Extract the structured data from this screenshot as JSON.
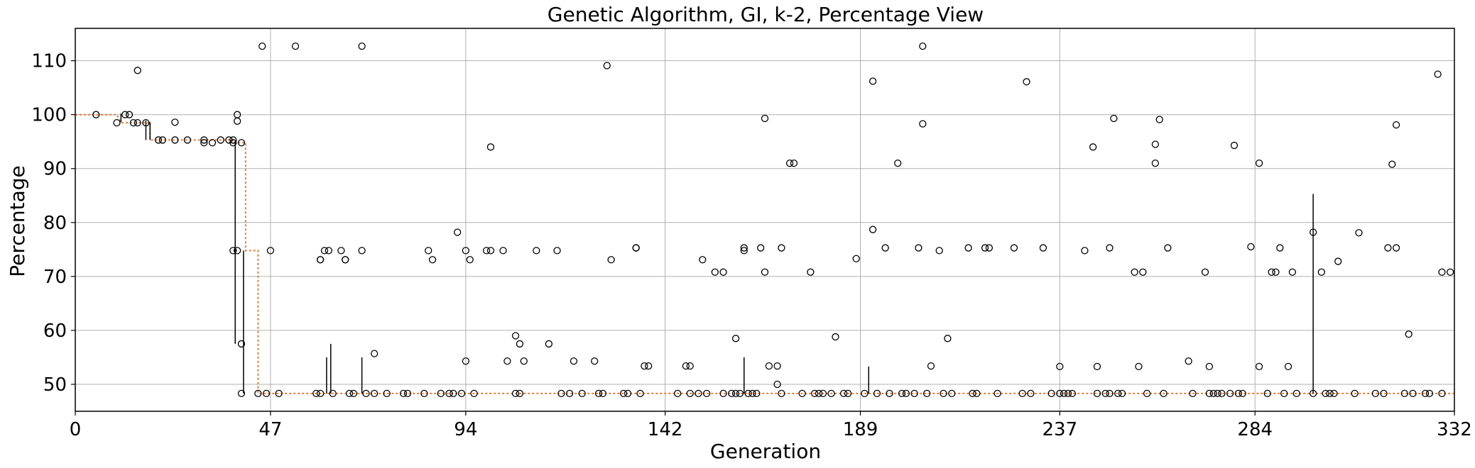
{
  "chart_data": {
    "type": "scatter",
    "title": "Genetic Algorithm, GI, k-2, Percentage View",
    "xlabel": "Generation",
    "ylabel": "Percentage",
    "xlim": [
      0,
      332
    ],
    "ylim": [
      45,
      116
    ],
    "xticks": [
      0,
      47,
      94,
      142,
      189,
      237,
      284,
      332
    ],
    "yticks": [
      50,
      60,
      70,
      80,
      90,
      100,
      110
    ],
    "grid": true,
    "colors": {
      "median_line": "#e07b39",
      "boxes": "#000000",
      "grid": "#b0b0b0"
    },
    "series": [
      {
        "role": "median",
        "points": [
          [
            0,
            100
          ],
          [
            10,
            100
          ],
          [
            11,
            98.5
          ],
          [
            18,
            98.5
          ],
          [
            18,
            95.3
          ],
          [
            38,
            95.3
          ],
          [
            38,
            94.8
          ],
          [
            41,
            94.8
          ],
          [
            41,
            74.8
          ],
          [
            44,
            74.8
          ],
          [
            44,
            48.3
          ],
          [
            332,
            48.3
          ]
        ]
      },
      {
        "role": "whiskers",
        "segments": [
          [
            11,
            98.6,
            100.2
          ],
          [
            17,
            95.3,
            98.9
          ],
          [
            18,
            95.3,
            98.6
          ],
          [
            38.5,
            57.5,
            95.2
          ],
          [
            40.5,
            48.3,
            74.8
          ],
          [
            60.5,
            48.3,
            55.0
          ],
          [
            61.5,
            48.3,
            57.5
          ],
          [
            69,
            48.3,
            55.0
          ],
          [
            161,
            48.3,
            55.0
          ],
          [
            191,
            48.3,
            53.3
          ],
          [
            298,
            48.3,
            85.3
          ]
        ]
      },
      {
        "role": "outliers",
        "points": [
          [
            5,
            100
          ],
          [
            10,
            98.5
          ],
          [
            12,
            100
          ],
          [
            13,
            100
          ],
          [
            14,
            98.5
          ],
          [
            15,
            98.5
          ],
          [
            15,
            108.2
          ],
          [
            17,
            98.5
          ],
          [
            20,
            95.3
          ],
          [
            21,
            95.3
          ],
          [
            24,
            98.6
          ],
          [
            24,
            95.3
          ],
          [
            27,
            95.3
          ],
          [
            31,
            95.3
          ],
          [
            31,
            94.8
          ],
          [
            33,
            94.8
          ],
          [
            35,
            95.3
          ],
          [
            37,
            95.3
          ],
          [
            38,
            95.3
          ],
          [
            38,
            94.8
          ],
          [
            38,
            74.8
          ],
          [
            39,
            74.8
          ],
          [
            39,
            100
          ],
          [
            39,
            98.8
          ],
          [
            40,
            94.8
          ],
          [
            40,
            57.5
          ],
          [
            40,
            48.3
          ],
          [
            44,
            48.3
          ],
          [
            46,
            48.3
          ],
          [
            45,
            112.7
          ],
          [
            47,
            74.8
          ],
          [
            49,
            48.3
          ],
          [
            53,
            112.7
          ],
          [
            58,
            48.3
          ],
          [
            59,
            48.3
          ],
          [
            59,
            73.1
          ],
          [
            59,
            73.1
          ],
          [
            60,
            74.8
          ],
          [
            61,
            74.8
          ],
          [
            62,
            48.3
          ],
          [
            64,
            74.8
          ],
          [
            65,
            73.1
          ],
          [
            65,
            73.1
          ],
          [
            66,
            48.3
          ],
          [
            67,
            48.3
          ],
          [
            69,
            74.8
          ],
          [
            69,
            112.7
          ],
          [
            70,
            48.3
          ],
          [
            72,
            55.7
          ],
          [
            72,
            48.3
          ],
          [
            75,
            48.3
          ],
          [
            79,
            48.3
          ],
          [
            80,
            48.3
          ],
          [
            84,
            48.3
          ],
          [
            85,
            74.8
          ],
          [
            86,
            73.1
          ],
          [
            88,
            48.3
          ],
          [
            90,
            48.3
          ],
          [
            91,
            48.3
          ],
          [
            92,
            78.2
          ],
          [
            93,
            48.3
          ],
          [
            94,
            74.8
          ],
          [
            94,
            54.3
          ],
          [
            95,
            73.1
          ],
          [
            96,
            48.3
          ],
          [
            99,
            74.8
          ],
          [
            100,
            74.8
          ],
          [
            100,
            94.0
          ],
          [
            103,
            74.8
          ],
          [
            104,
            54.3
          ],
          [
            106,
            59.0
          ],
          [
            106,
            48.3
          ],
          [
            107,
            48.3
          ],
          [
            107,
            57.5
          ],
          [
            108,
            54.3
          ],
          [
            111,
            74.8
          ],
          [
            114,
            57.5
          ],
          [
            116,
            74.8
          ],
          [
            117,
            48.3
          ],
          [
            119,
            48.3
          ],
          [
            120,
            54.3
          ],
          [
            122,
            48.3
          ],
          [
            125,
            54.3
          ],
          [
            126,
            48.3
          ],
          [
            127,
            48.3
          ],
          [
            128,
            109.1
          ],
          [
            129,
            73.1
          ],
          [
            132,
            48.3
          ],
          [
            133,
            48.3
          ],
          [
            135,
            75.3
          ],
          [
            135,
            75.3
          ],
          [
            136,
            48.3
          ],
          [
            137,
            53.4
          ],
          [
            138,
            53.4
          ],
          [
            145,
            48.3
          ],
          [
            147,
            53.4
          ],
          [
            148,
            53.4
          ],
          [
            148,
            48.3
          ],
          [
            150,
            48.3
          ],
          [
            151,
            73.1
          ],
          [
            152,
            48.3
          ],
          [
            154,
            70.8
          ],
          [
            156,
            70.8
          ],
          [
            156,
            48.3
          ],
          [
            158,
            48.3
          ],
          [
            159,
            58.5
          ],
          [
            159,
            48.3
          ],
          [
            160,
            48.3
          ],
          [
            161,
            74.8
          ],
          [
            161,
            75.3
          ],
          [
            162,
            48.3
          ],
          [
            163,
            48.3
          ],
          [
            164,
            48.3
          ],
          [
            165,
            75.3
          ],
          [
            166,
            99.3
          ],
          [
            166,
            70.8
          ],
          [
            167,
            53.4
          ],
          [
            169,
            50.0
          ],
          [
            169,
            53.4
          ],
          [
            170,
            75.3
          ],
          [
            170,
            48.3
          ],
          [
            172,
            91.0
          ],
          [
            173,
            91.0
          ],
          [
            175,
            48.3
          ],
          [
            177,
            70.8
          ],
          [
            178,
            48.3
          ],
          [
            179,
            48.3
          ],
          [
            180,
            48.3
          ],
          [
            182,
            48.3
          ],
          [
            183,
            58.8
          ],
          [
            185,
            48.3
          ],
          [
            186,
            48.3
          ],
          [
            188,
            73.3
          ],
          [
            190,
            48.3
          ],
          [
            192,
            106.2
          ],
          [
            192,
            78.7
          ],
          [
            193,
            48.3
          ],
          [
            195,
            75.3
          ],
          [
            196,
            48.3
          ],
          [
            198,
            91.0
          ],
          [
            199,
            48.3
          ],
          [
            200,
            48.3
          ],
          [
            202,
            48.3
          ],
          [
            203,
            75.3
          ],
          [
            204,
            98.3
          ],
          [
            204,
            112.7
          ],
          [
            205,
            48.3
          ],
          [
            206,
            53.4
          ],
          [
            208,
            74.8
          ],
          [
            209,
            48.3
          ],
          [
            210,
            58.5
          ],
          [
            211,
            48.3
          ],
          [
            215,
            75.3
          ],
          [
            216,
            48.3
          ],
          [
            217,
            48.3
          ],
          [
            219,
            75.3
          ],
          [
            220,
            75.3
          ],
          [
            222,
            48.3
          ],
          [
            226,
            75.3
          ],
          [
            228,
            48.3
          ],
          [
            229,
            106.1
          ],
          [
            230,
            48.3
          ],
          [
            233,
            75.3
          ],
          [
            235,
            48.3
          ],
          [
            237,
            53.3
          ],
          [
            237,
            48.3
          ],
          [
            238,
            48.3
          ],
          [
            239,
            48.3
          ],
          [
            240,
            48.3
          ],
          [
            243,
            74.8
          ],
          [
            245,
            94.0
          ],
          [
            246,
            53.3
          ],
          [
            246,
            48.3
          ],
          [
            248,
            48.3
          ],
          [
            249,
            75.3
          ],
          [
            249,
            48.3
          ],
          [
            250,
            99.3
          ],
          [
            251,
            48.3
          ],
          [
            252,
            48.3
          ],
          [
            255,
            70.8
          ],
          [
            256,
            53.3
          ],
          [
            257,
            70.8
          ],
          [
            258,
            48.3
          ],
          [
            260,
            94.5
          ],
          [
            260,
            91.0
          ],
          [
            261,
            99.1
          ],
          [
            262,
            48.3
          ],
          [
            263,
            75.3
          ],
          [
            268,
            54.3
          ],
          [
            269,
            48.3
          ],
          [
            272,
            70.8
          ],
          [
            273,
            53.3
          ],
          [
            273,
            48.3
          ],
          [
            274,
            48.3
          ],
          [
            275,
            48.3
          ],
          [
            276,
            48.3
          ],
          [
            278,
            48.3
          ],
          [
            279,
            94.3
          ],
          [
            280,
            48.3
          ],
          [
            281,
            48.3
          ],
          [
            283,
            75.5
          ],
          [
            285,
            53.3
          ],
          [
            285,
            91.0
          ],
          [
            287,
            48.3
          ],
          [
            288,
            70.8
          ],
          [
            289,
            70.8
          ],
          [
            290,
            75.3
          ],
          [
            291,
            48.3
          ],
          [
            292,
            53.3
          ],
          [
            293,
            70.8
          ],
          [
            294,
            48.3
          ],
          [
            298,
            48.3
          ],
          [
            298,
            78.2
          ],
          [
            300,
            70.8
          ],
          [
            301,
            48.3
          ],
          [
            302,
            48.3
          ],
          [
            303,
            48.3
          ],
          [
            304,
            72.8
          ],
          [
            308,
            48.3
          ],
          [
            309,
            78.1
          ],
          [
            313,
            48.3
          ],
          [
            315,
            48.3
          ],
          [
            316,
            75.3
          ],
          [
            317,
            90.8
          ],
          [
            318,
            98.1
          ],
          [
            318,
            75.3
          ],
          [
            320,
            48.3
          ],
          [
            321,
            59.3
          ],
          [
            322,
            48.3
          ],
          [
            325,
            48.3
          ],
          [
            326,
            48.3
          ],
          [
            328,
            107.5
          ],
          [
            329,
            70.8
          ],
          [
            329,
            48.3
          ],
          [
            331,
            70.8
          ]
        ]
      }
    ]
  }
}
